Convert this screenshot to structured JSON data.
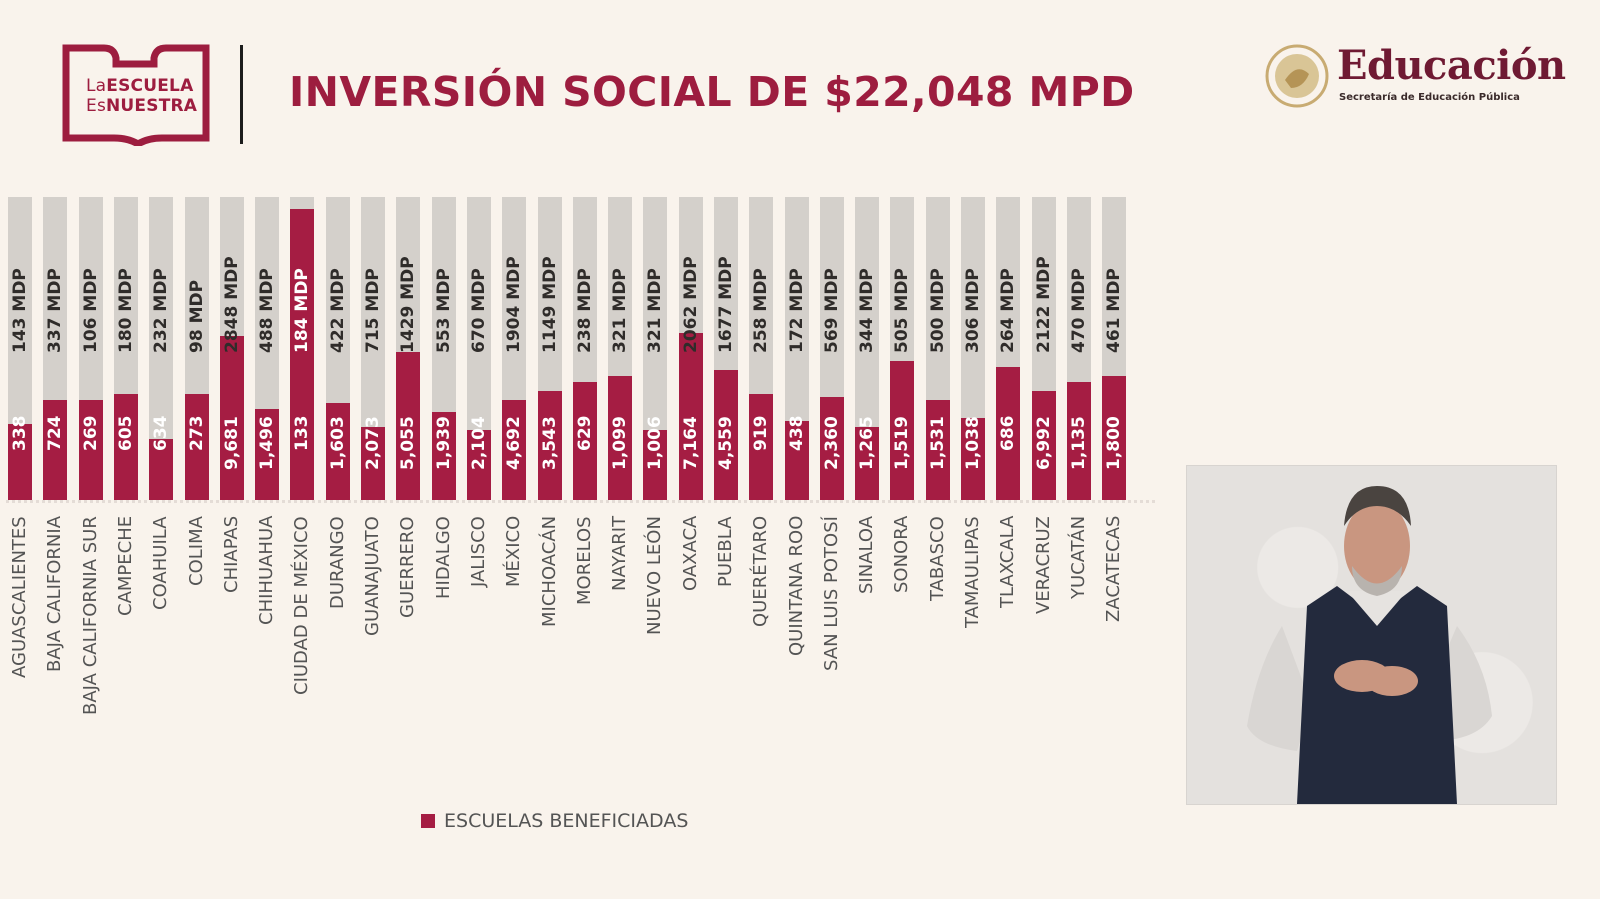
{
  "header": {
    "logo_left": {
      "line1_light": "La",
      "line1_bold": "ESCUELA",
      "line2_light": "Es",
      "line2_bold": "NUESTRA"
    },
    "title": "INVERSIÓN SOCIAL DE $22,048 MPD",
    "logo_right": {
      "title": "Educación",
      "subtitle": "Secretaría de Educación Pública"
    }
  },
  "colors": {
    "accent": "#a51d43",
    "bar_bg": "#d4d0cb",
    "background": "#f9f3ec"
  },
  "chart_data": {
    "type": "bar",
    "title": "INVERSIÓN SOCIAL DE $22,048 MPD",
    "legend": [
      {
        "label": "ESCUELAS BENEFICIADAS",
        "color": "#a51d43",
        "placement": "bottom"
      }
    ],
    "categories": [
      "AGUASCALIENTES",
      "BAJA CALIFORNIA",
      "BAJA CALIFORNIA SUR",
      "CAMPECHE",
      "COAHUILA",
      "COLIMA",
      "CHIAPAS",
      "CHIHUAHUA",
      "CIUDAD DE MÉXICO",
      "DURANGO",
      "GUANAJUATO",
      "GUERRERO",
      "HIDALGO",
      "JALISCO",
      "MÉXICO",
      "MICHOACÁN",
      "MORELOS",
      "NAYARIT",
      "NUEVO LEÓN",
      "OAXACA",
      "PUEBLA",
      "QUERÉTARO",
      "QUINTANA ROO",
      "SAN LUIS POTOSÍ",
      "SINALOA",
      "SONORA",
      "TABASCO",
      "TAMAULIPAS",
      "TLAXCALA",
      "VERACRUZ",
      "YUCATÁN",
      "ZACATECAS"
    ],
    "series": [
      {
        "name": "ESCUELAS BENEFICIADAS",
        "values": [
          338,
          724,
          269,
          605,
          634,
          273,
          9681,
          1496,
          133,
          1603,
          2073,
          5055,
          1939,
          2104,
          4692,
          3543,
          629,
          1099,
          1006,
          7164,
          4559,
          919,
          438,
          2360,
          1265,
          1519,
          1531,
          1038,
          686,
          6992,
          1135,
          1800
        ],
        "labels": [
          "338",
          "724",
          "269",
          "605",
          "634",
          "273",
          "9,681",
          "1,496",
          "133",
          "1,603",
          "2,073",
          "5,055",
          "1,939",
          "2,104",
          "4,692",
          "3,543",
          "629",
          "1,099",
          "1,006",
          "7,164",
          "4,559",
          "919",
          "438",
          "2,360",
          "1,265",
          "1,519",
          "1,531",
          "1,038",
          "686",
          "6,992",
          "1,135",
          "1,800"
        ],
        "fill_fraction": [
          0.25,
          0.33,
          0.33,
          0.35,
          0.2,
          0.35,
          0.54,
          0.3,
          0.96,
          0.32,
          0.24,
          0.49,
          0.29,
          0.23,
          0.33,
          0.36,
          0.39,
          0.41,
          0.23,
          0.55,
          0.43,
          0.35,
          0.26,
          0.34,
          0.24,
          0.46,
          0.33,
          0.27,
          0.44,
          0.36,
          0.39,
          0.41
        ]
      },
      {
        "name": "MDP",
        "values": [
          143,
          337,
          106,
          180,
          232,
          98,
          2848,
          488,
          184,
          422,
          715,
          1429,
          553,
          670,
          1904,
          1149,
          238,
          321,
          321,
          2062,
          1677,
          258,
          172,
          569,
          344,
          505,
          500,
          306,
          264,
          2122,
          470,
          461
        ],
        "labels": [
          "143 MDP",
          "337 MDP",
          "106 MDP",
          "180 MDP",
          "232 MDP",
          "98 MDP",
          "2848 MDP",
          "488 MDP",
          "184 MDP",
          "422 MDP",
          "715 MDP",
          "1429 MDP",
          "553 MDP",
          "670 MDP",
          "1904 MDP",
          "1149 MDP",
          "238 MDP",
          "321 MDP",
          "321 MDP",
          "2062 MDP",
          "1677 MDP",
          "258 MDP",
          "172 MDP",
          "569 MDP",
          "344 MDP",
          "505 MDP",
          "500 MDP",
          "306 MDP",
          "264 MDP",
          "2122 MDP",
          "470 MDP",
          "461 MDP"
        ]
      }
    ],
    "grid": false
  }
}
